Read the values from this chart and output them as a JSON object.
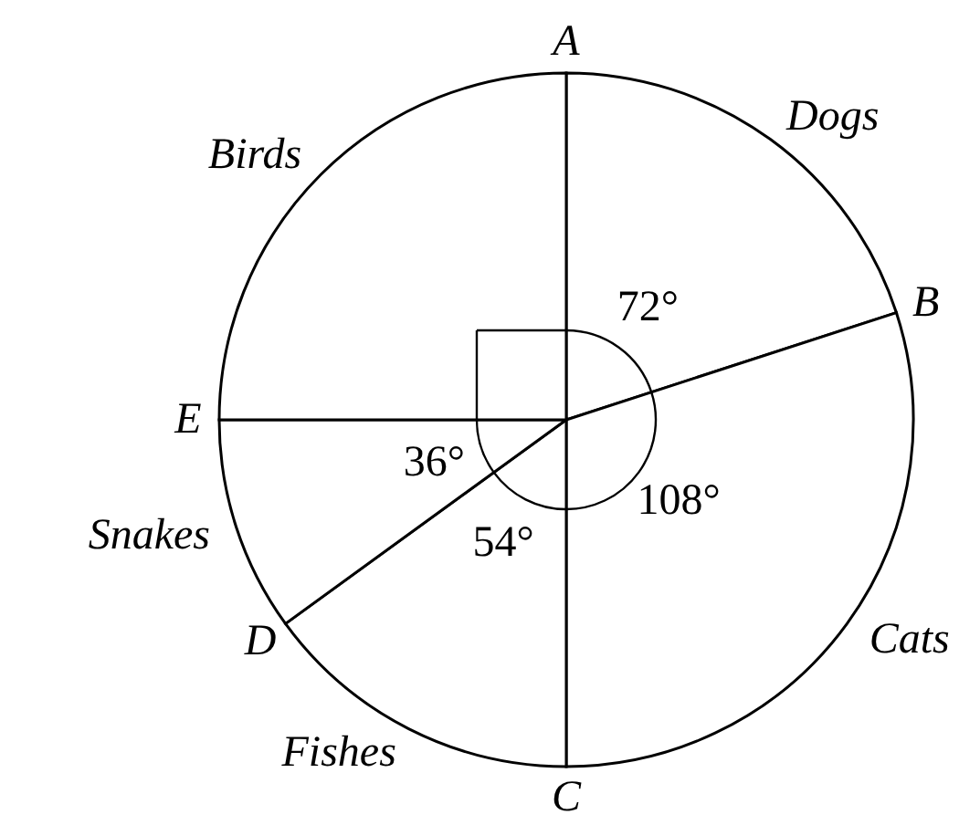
{
  "chart_data": {
    "type": "pie",
    "categories": [
      "Dogs",
      "Cats",
      "Fishes",
      "Snakes",
      "Birds"
    ],
    "values": [
      72,
      108,
      54,
      36,
      90
    ],
    "colors": [
      "#ffffff",
      "#ffffff",
      "#ffffff",
      "#ffffff",
      "#ffffff"
    ],
    "value_labels": [
      "72°",
      "108°",
      "54°",
      "36°",
      null
    ],
    "annotations": [
      "A",
      "B",
      "C",
      "D",
      "E"
    ]
  }
}
